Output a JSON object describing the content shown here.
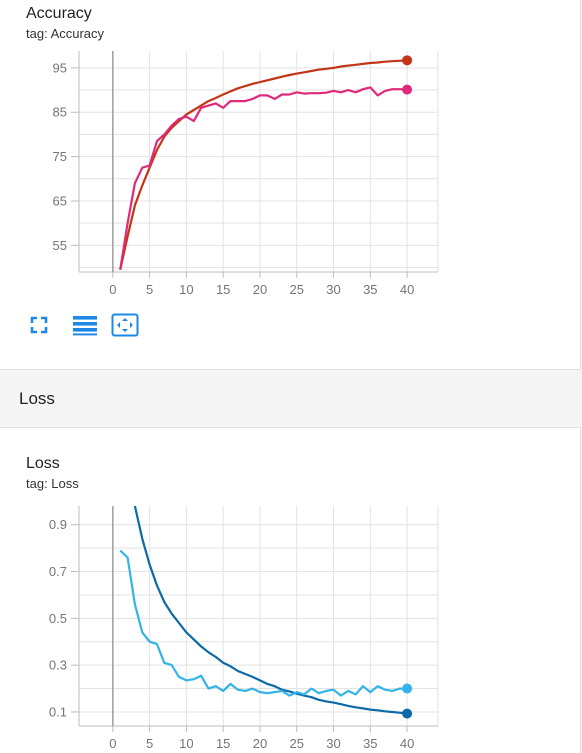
{
  "charts": {
    "accuracy": {
      "title": "Accuracy",
      "tag": "tag: Accuracy"
    },
    "loss": {
      "title": "Loss",
      "tag": "tag: Loss"
    }
  },
  "section": {
    "title": "Loss"
  },
  "toolbar": {
    "fullscreen_icon": "fullscreen-icon",
    "data_table_icon": "data-table-icon",
    "fit_domain_icon": "fit-domain-icon"
  },
  "colors": {
    "accuracy_train": "#c23616",
    "accuracy_val": "#e0297a",
    "loss_train": "#0b6aa8",
    "loss_val": "#33b3e6",
    "grid": "#e3e3e3",
    "axis": "#9e9e9e",
    "toolbar_accent": "#1e88e5"
  },
  "chart_data": [
    {
      "type": "line",
      "title": "Accuracy",
      "xlim": [
        -4.6,
        44.2
      ],
      "ylim": [
        49,
        98.8
      ],
      "x_ticks": [
        0,
        5,
        10,
        15,
        20,
        25,
        30,
        35,
        40
      ],
      "y_ticks": [
        55,
        65,
        75,
        85,
        95
      ],
      "grid": true,
      "series": [
        {
          "color": "#c23616",
          "x": [
            1,
            2,
            3,
            4,
            5,
            6,
            7,
            8,
            9,
            10,
            11,
            12,
            13,
            14,
            15,
            16,
            17,
            18,
            19,
            20,
            21,
            22,
            23,
            24,
            25,
            26,
            27,
            28,
            29,
            30,
            31,
            32,
            33,
            34,
            35,
            36,
            37,
            38,
            39,
            40
          ],
          "values": [
            49.5,
            57,
            64,
            68.5,
            72.5,
            76.5,
            79.5,
            81.5,
            83,
            84.5,
            85.5,
            86.5,
            87.5,
            88.2,
            89,
            89.7,
            90.4,
            90.9,
            91.4,
            91.8,
            92.2,
            92.6,
            93,
            93.4,
            93.7,
            94,
            94.3,
            94.6,
            94.8,
            95,
            95.3,
            95.5,
            95.7,
            95.9,
            96.1,
            96.2,
            96.4,
            96.5,
            96.6,
            96.7
          ]
        },
        {
          "color": "#e0297a",
          "x": [
            1,
            2,
            3,
            4,
            5,
            6,
            7,
            8,
            9,
            10,
            11,
            12,
            13,
            14,
            15,
            16,
            17,
            18,
            19,
            20,
            21,
            22,
            23,
            24,
            25,
            26,
            27,
            28,
            29,
            30,
            31,
            32,
            33,
            34,
            35,
            36,
            37,
            38,
            39,
            40
          ],
          "values": [
            49.5,
            60,
            69,
            72.5,
            73,
            78.5,
            80,
            82,
            83.5,
            84,
            83,
            86,
            86.5,
            87,
            86,
            87.5,
            87.5,
            87.5,
            88,
            88.8,
            88.8,
            88,
            89,
            89,
            89.5,
            89.2,
            89.3,
            89.3,
            89.4,
            89.8,
            89.5,
            90,
            89.5,
            90.2,
            90.6,
            88.8,
            89.8,
            90.2,
            90.2,
            90.1
          ]
        }
      ]
    },
    {
      "type": "line",
      "title": "Loss",
      "xlim": [
        -4.6,
        44.2
      ],
      "ylim": [
        0.04,
        0.98
      ],
      "x_ticks": [
        0,
        5,
        10,
        15,
        20,
        25,
        30,
        35,
        40
      ],
      "y_ticks": [
        0.1,
        0.3,
        0.5,
        0.7,
        0.9
      ],
      "grid": true,
      "series": [
        {
          "color": "#0b6aa8",
          "x": [
            3,
            4,
            5,
            6,
            7,
            8,
            9,
            10,
            11,
            12,
            13,
            14,
            15,
            16,
            17,
            18,
            19,
            20,
            21,
            22,
            23,
            24,
            25,
            26,
            27,
            28,
            29,
            30,
            31,
            32,
            33,
            34,
            35,
            36,
            37,
            38,
            39,
            40
          ],
          "values": [
            0.98,
            0.84,
            0.73,
            0.64,
            0.57,
            0.52,
            0.48,
            0.44,
            0.41,
            0.38,
            0.355,
            0.335,
            0.31,
            0.295,
            0.275,
            0.262,
            0.25,
            0.235,
            0.22,
            0.21,
            0.195,
            0.188,
            0.178,
            0.17,
            0.163,
            0.152,
            0.145,
            0.14,
            0.133,
            0.126,
            0.12,
            0.115,
            0.11,
            0.107,
            0.103,
            0.1,
            0.097,
            0.093
          ]
        },
        {
          "color": "#33b3e6",
          "x": [
            1,
            2,
            3,
            4,
            5,
            6,
            7,
            8,
            9,
            10,
            11,
            12,
            13,
            14,
            15,
            16,
            17,
            18,
            19,
            20,
            21,
            22,
            23,
            24,
            25,
            26,
            27,
            28,
            29,
            30,
            31,
            32,
            33,
            34,
            35,
            36,
            37,
            38,
            39,
            40
          ],
          "values": [
            0.79,
            0.76,
            0.56,
            0.44,
            0.4,
            0.39,
            0.31,
            0.3,
            0.25,
            0.235,
            0.24,
            0.255,
            0.2,
            0.21,
            0.19,
            0.22,
            0.195,
            0.19,
            0.2,
            0.185,
            0.18,
            0.185,
            0.19,
            0.17,
            0.185,
            0.175,
            0.2,
            0.18,
            0.19,
            0.195,
            0.17,
            0.19,
            0.175,
            0.21,
            0.185,
            0.21,
            0.195,
            0.19,
            0.2,
            0.2
          ]
        }
      ]
    }
  ]
}
